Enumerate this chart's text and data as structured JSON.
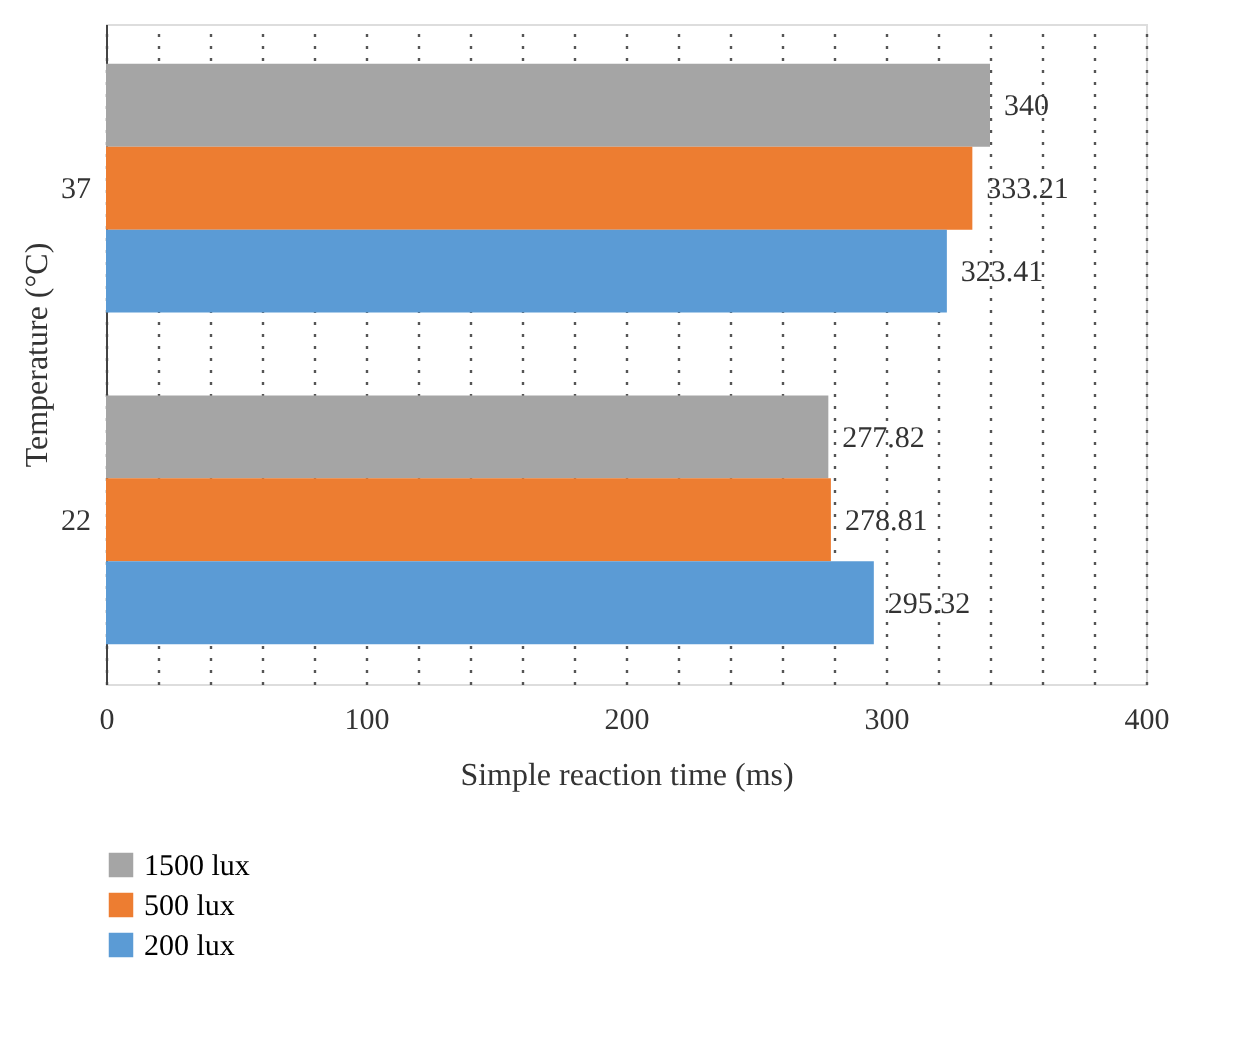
{
  "chart_data": {
    "type": "bar",
    "orientation": "horizontal",
    "xlabel": "Simple reaction time (ms)",
    "ylabel": "Temperature (°C)",
    "categories": [
      "37",
      "22"
    ],
    "series": [
      {
        "name": "1500 lux",
        "color": "#a5a5a5",
        "values": [
          340,
          277.82
        ]
      },
      {
        "name": "500 lux",
        "color": "#ed7d31",
        "values": [
          333.21,
          278.81
        ]
      },
      {
        "name": "200 lux",
        "color": "#5b9bd5",
        "values": [
          323.41,
          295.32
        ]
      }
    ],
    "xlim": [
      0,
      400
    ],
    "xticks": [
      0,
      {
        "value": 20,
        "label": null
      },
      {
        "value": 40,
        "label": null
      },
      {
        "value": 60,
        "label": null
      },
      {
        "value": 80,
        "label": null
      },
      100,
      {
        "value": 120,
        "label": null
      },
      {
        "value": 140,
        "label": null
      },
      {
        "value": 160,
        "label": null
      },
      {
        "value": 180,
        "label": null
      },
      200,
      {
        "value": 220,
        "label": null
      },
      {
        "value": 240,
        "label": null
      },
      {
        "value": 260,
        "label": null
      },
      {
        "value": 280,
        "label": null
      },
      300,
      {
        "value": 320,
        "label": null
      },
      {
        "value": 340,
        "label": null
      },
      {
        "value": 360,
        "label": null
      },
      {
        "value": 380,
        "label": null
      },
      400
    ],
    "grid": "x",
    "data_labels": true,
    "legend": "bottom left"
  }
}
